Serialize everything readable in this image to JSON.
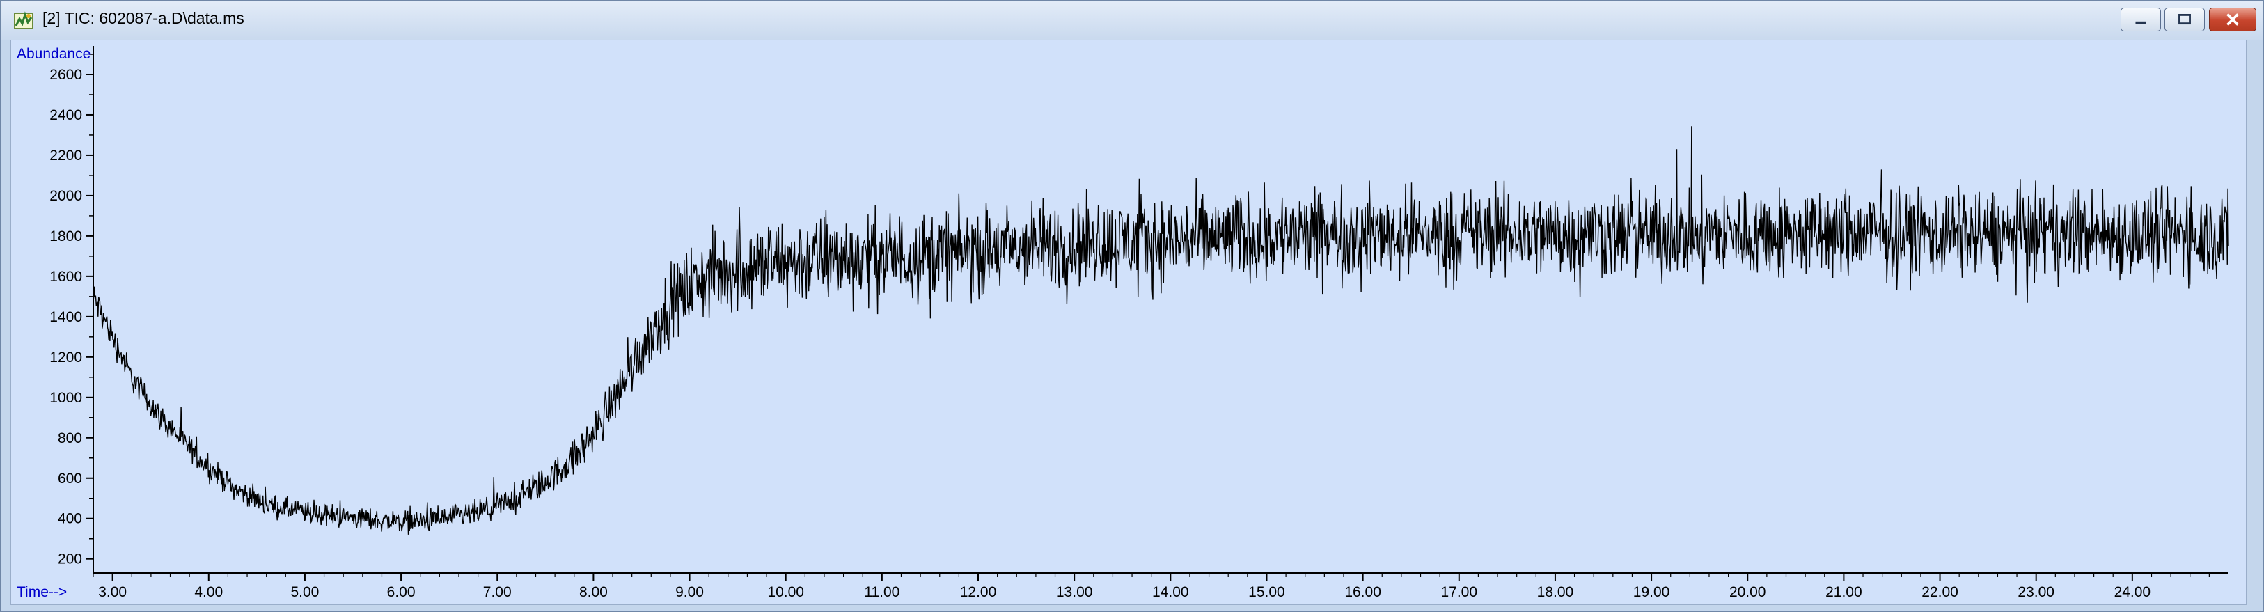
{
  "window": {
    "title": "[2] TIC: 602087-a.D\\data.ms",
    "icon": "chromatogram-app-icon",
    "buttons": {
      "minimize": "minimize-icon",
      "maximize": "maximize-icon",
      "close": "close-icon"
    },
    "colors": {
      "plot_background": "#d1e1fa",
      "trace": "#000000",
      "axis_label": "#0000cc",
      "close_button": "#c7452d"
    }
  },
  "chart_data": {
    "type": "line",
    "title": "",
    "ylabel": "Abundance",
    "xlabel": "Time-->",
    "xlim": [
      2.8,
      25.0
    ],
    "ylim": [
      130,
      2700
    ],
    "y_ticks": [
      200,
      400,
      600,
      800,
      1000,
      1200,
      1400,
      1600,
      1800,
      2000,
      2200,
      2400,
      2600
    ],
    "x_ticks": [
      "3.00",
      "4.00",
      "5.00",
      "6.00",
      "7.00",
      "8.00",
      "9.00",
      "10.00",
      "11.00",
      "12.00",
      "13.00",
      "14.00",
      "15.00",
      "16.00",
      "17.00",
      "18.00",
      "19.00",
      "20.00",
      "21.00",
      "22.00",
      "23.00",
      "24.00"
    ],
    "grid": false,
    "legend": "none",
    "series": [
      {
        "x": [
          2.8,
          3.0,
          3.2,
          3.5,
          3.8,
          4.0,
          4.3,
          4.6,
          5.0,
          5.4,
          5.8,
          6.0,
          6.3,
          6.6,
          6.9,
          7.2,
          7.5,
          7.8,
          8.0,
          8.2,
          8.4,
          8.6,
          8.8,
          9.0,
          9.2,
          9.5,
          10.0,
          10.5,
          11.0,
          11.5,
          12.0,
          12.5,
          13.0,
          13.5,
          14.0,
          14.5,
          15.0,
          15.5,
          16.0,
          16.5,
          17.0,
          17.5,
          18.0,
          18.5,
          19.0,
          19.5,
          20.0,
          20.5,
          21.0,
          21.5,
          22.0,
          22.5,
          23.0,
          23.5,
          24.0,
          24.5,
          25.0
        ],
        "y": [
          1500,
          1300,
          1100,
          900,
          750,
          650,
          540,
          470,
          430,
          410,
          390,
          385,
          390,
          410,
          440,
          500,
          580,
          700,
          820,
          980,
          1150,
          1320,
          1460,
          1550,
          1600,
          1640,
          1670,
          1690,
          1700,
          1710,
          1720,
          1740,
          1760,
          1770,
          1780,
          1790,
          1800,
          1800,
          1810,
          1810,
          1810,
          1810,
          1810,
          1810,
          1810,
          1810,
          1810,
          1810,
          1810,
          1810,
          1810,
          1810,
          1810,
          1810,
          1810,
          1810,
          1810
        ],
        "noise_amplitude": [
          120,
          110,
          100,
          95,
          90,
          85,
          80,
          80,
          80,
          80,
          80,
          80,
          85,
          90,
          95,
          100,
          110,
          130,
          150,
          170,
          200,
          230,
          260,
          280,
          300,
          320,
          320,
          320,
          320,
          320,
          320,
          320,
          320,
          320,
          320,
          320,
          320,
          320,
          320,
          320,
          320,
          320,
          320,
          320,
          320,
          320,
          320,
          320,
          320,
          320,
          320,
          320,
          320,
          320,
          320,
          320,
          320
        ]
      }
    ]
  }
}
